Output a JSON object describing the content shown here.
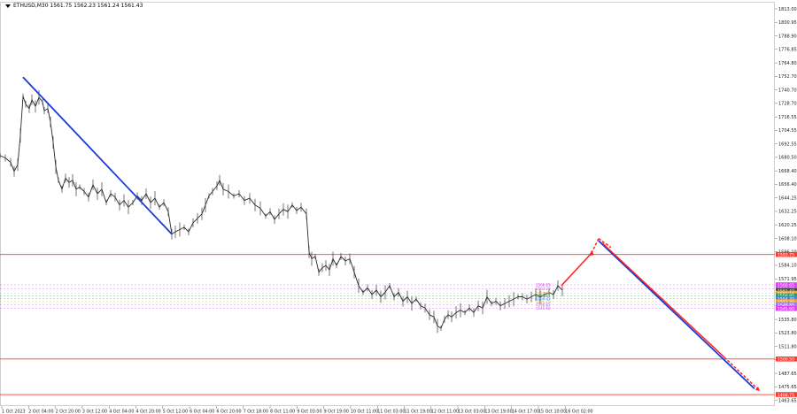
{
  "title": "ETHUSD,M30  1561.75 1562.23 1561.24 1561.43",
  "chart_data": {
    "type": "line",
    "symbol": "ETHUSD",
    "timeframe": "M30",
    "ohlc": {
      "open": 1561.75,
      "high": 1562.23,
      "low": 1561.24,
      "close": 1561.43
    },
    "y_ticks": [
      1813.0,
      1800.95,
      1788.9,
      1776.85,
      1764.8,
      1752.7,
      1740.7,
      1728.7,
      1716.55,
      1704.55,
      1692.55,
      1680.5,
      1668.4,
      1656.4,
      1644.25,
      1632.25,
      1620.25,
      1608.1,
      1596.1,
      1584.1,
      1571.95,
      1559.95,
      1547.9,
      1535.8,
      1523.8,
      1511.8,
      1499.75,
      1487.65,
      1475.65,
      1463.65
    ],
    "ylim": [
      1458,
      1824
    ],
    "x_ticks": [
      "1 Oct 2023",
      "2 Oct 04:00",
      "2 Oct 20:00",
      "3 Oct 12:00",
      "4 Oct 04:00",
      "4 Oct 20:00",
      "5 Oct 12:00",
      "6 Oct 04:00",
      "6 Oct 20:00",
      "7 Oct 18:00",
      "8 Oct 11:00",
      "9 Oct 03:00",
      "9 Oct 19:00",
      "10 Oct 11:00",
      "11 Oct 03:00",
      "11 Oct 19:00",
      "12 Oct 11:00",
      "13 Oct 03:00",
      "13 Oct 19:00",
      "14 Oct 17:00",
      "15 Oct 10:00",
      "16 Oct 02:00"
    ],
    "price_path": [
      [
        0,
        1682
      ],
      [
        6,
        1680
      ],
      [
        12,
        1676
      ],
      [
        16,
        1668
      ],
      [
        20,
        1674
      ],
      [
        23,
        1700
      ],
      [
        26,
        1735
      ],
      [
        29,
        1728
      ],
      [
        33,
        1724
      ],
      [
        36,
        1732
      ],
      [
        40,
        1726
      ],
      [
        44,
        1734
      ],
      [
        48,
        1730
      ],
      [
        50,
        1722
      ],
      [
        54,
        1724
      ],
      [
        57,
        1712
      ],
      [
        60,
        1694
      ],
      [
        63,
        1672
      ],
      [
        66,
        1660
      ],
      [
        70,
        1652
      ],
      [
        74,
        1662
      ],
      [
        78,
        1658
      ],
      [
        82,
        1660
      ],
      [
        86,
        1652
      ],
      [
        90,
        1654
      ],
      [
        95,
        1650
      ],
      [
        100,
        1645
      ],
      [
        105,
        1656
      ],
      [
        110,
        1648
      ],
      [
        115,
        1652
      ],
      [
        120,
        1640
      ],
      [
        125,
        1648
      ],
      [
        130,
        1645
      ],
      [
        135,
        1638
      ],
      [
        140,
        1642
      ],
      [
        145,
        1636
      ],
      [
        150,
        1640
      ],
      [
        155,
        1646
      ],
      [
        160,
        1642
      ],
      [
        165,
        1648
      ],
      [
        170,
        1640
      ],
      [
        175,
        1644
      ],
      [
        180,
        1636
      ],
      [
        185,
        1640
      ],
      [
        190,
        1632
      ],
      [
        194,
        1612
      ],
      [
        198,
        1614
      ],
      [
        203,
        1616
      ],
      [
        208,
        1618
      ],
      [
        213,
        1614
      ],
      [
        218,
        1622
      ],
      [
        223,
        1626
      ],
      [
        228,
        1630
      ],
      [
        232,
        1638
      ],
      [
        236,
        1646
      ],
      [
        240,
        1650
      ],
      [
        245,
        1655
      ],
      [
        248,
        1660
      ],
      [
        252,
        1652
      ],
      [
        258,
        1650
      ],
      [
        264,
        1646
      ],
      [
        270,
        1648
      ],
      [
        276,
        1642
      ],
      [
        282,
        1644
      ],
      [
        288,
        1638
      ],
      [
        294,
        1635
      ],
      [
        300,
        1628
      ],
      [
        305,
        1632
      ],
      [
        310,
        1625
      ],
      [
        315,
        1630
      ],
      [
        320,
        1634
      ],
      [
        325,
        1632
      ],
      [
        330,
        1638
      ],
      [
        335,
        1633
      ],
      [
        340,
        1636
      ],
      [
        346,
        1630
      ],
      [
        349,
        1596
      ],
      [
        352,
        1590
      ],
      [
        356,
        1592
      ],
      [
        360,
        1578
      ],
      [
        364,
        1582
      ],
      [
        368,
        1584
      ],
      [
        372,
        1580
      ],
      [
        376,
        1590
      ],
      [
        380,
        1584
      ],
      [
        385,
        1592
      ],
      [
        390,
        1588
      ],
      [
        395,
        1590
      ],
      [
        400,
        1578
      ],
      [
        405,
        1566
      ],
      [
        410,
        1560
      ],
      [
        415,
        1564
      ],
      [
        420,
        1558
      ],
      [
        425,
        1562
      ],
      [
        430,
        1556
      ],
      [
        435,
        1560
      ],
      [
        440,
        1566
      ],
      [
        445,
        1556
      ],
      [
        450,
        1560
      ],
      [
        455,
        1552
      ],
      [
        460,
        1556
      ],
      [
        465,
        1550
      ],
      [
        470,
        1554
      ],
      [
        475,
        1548
      ],
      [
        480,
        1546
      ],
      [
        485,
        1540
      ],
      [
        490,
        1538
      ],
      [
        494,
        1530
      ],
      [
        498,
        1528
      ],
      [
        502,
        1536
      ],
      [
        506,
        1540
      ],
      [
        510,
        1538
      ],
      [
        515,
        1542
      ],
      [
        520,
        1544
      ],
      [
        525,
        1542
      ],
      [
        530,
        1546
      ],
      [
        535,
        1542
      ],
      [
        540,
        1548
      ],
      [
        545,
        1546
      ],
      [
        550,
        1556
      ],
      [
        555,
        1550
      ],
      [
        560,
        1552
      ],
      [
        565,
        1548
      ],
      [
        570,
        1550
      ],
      [
        575,
        1552
      ],
      [
        580,
        1554
      ],
      [
        585,
        1556
      ],
      [
        590,
        1556
      ],
      [
        595,
        1554
      ],
      [
        600,
        1556
      ],
      [
        605,
        1558
      ],
      [
        610,
        1556
      ],
      [
        615,
        1558
      ],
      [
        620,
        1560
      ],
      [
        625,
        1558
      ],
      [
        630,
        1566
      ],
      [
        635,
        1562
      ]
    ],
    "horizontal_lines": [
      {
        "price": 1593.75,
        "label": "1593.75",
        "color": "#ff3b30"
      },
      {
        "price": 1500.5,
        "label": "1500.50",
        "color": "#ff3b30"
      },
      {
        "price": 1468.75,
        "label": "1468.75",
        "color": "#ff3b30"
      }
    ],
    "price_tags": [
      {
        "price": 1566.65,
        "color": "#e040fb"
      },
      {
        "price": 1563.2,
        "color": "#c45bd4"
      },
      {
        "price": 1561.43,
        "color": "#444444"
      },
      {
        "price": 1559.15,
        "color": "#f5a623"
      },
      {
        "price": 1556.85,
        "color": "#2e9e5b"
      },
      {
        "price": 1554.35,
        "color": "#3b82f6"
      },
      {
        "price": 1551.7,
        "color": "#e8a838"
      },
      {
        "price": 1548.85,
        "color": "#a57ee0"
      },
      {
        "price": 1545.6,
        "color": "#e040fb"
      }
    ],
    "dashed_levels": [
      1566.65,
      1563.2,
      1559.15,
      1556.85,
      1554.35,
      1551.7,
      1548.85,
      1545.6
    ],
    "zone_labels": [
      "1566.65",
      "1563.20",
      "1559.15",
      "1556.85",
      "1554.35",
      "1551.70",
      "1548.85",
      "1545.60"
    ],
    "trend_line_blue": {
      "from": [
        26,
        1752
      ],
      "to": [
        194,
        1612
      ],
      "color": "#1a3bdb"
    },
    "forecast_path_red": [
      [
        634,
        1566
      ],
      [
        668,
        1595
      ],
      [
        676,
        1608
      ],
      [
        690,
        1600
      ]
    ],
    "forecast_down_blue": {
      "from": [
        676,
        1606
      ],
      "to": [
        852,
        1474
      ],
      "color": "#1a3bdb"
    },
    "forecast_down_red": {
      "from": [
        680,
        1604
      ],
      "to": [
        858,
        1472
      ],
      "color": "#ff2020"
    },
    "grid": false
  }
}
